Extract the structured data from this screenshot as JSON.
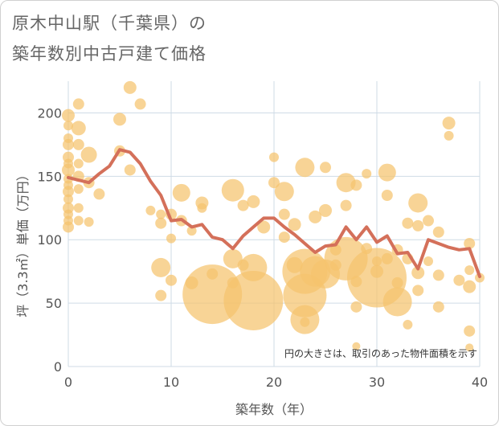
{
  "title_line1": "原木中山駅（千葉県）の",
  "title_line2": "築年数別中古戸建て価格",
  "chart_data": {
    "type": "scatter+line",
    "xlabel": "築年数（年）",
    "ylabel": "坪（3.3㎡）単価（万円）",
    "xlim": [
      0,
      40
    ],
    "ylim": [
      0,
      225
    ],
    "xticks": [
      0,
      10,
      20,
      30,
      40
    ],
    "yticks": [
      0,
      50,
      100,
      150,
      200
    ],
    "grid": true,
    "annotation": "円の大きさは、取引のあった物件面積を示す",
    "colors": {
      "bubble": "#f5c46e",
      "line": "#d4705a",
      "grid": "#cfdbe6"
    },
    "bubbles": [
      {
        "x": 0,
        "y": 198,
        "r": 8
      },
      {
        "x": 0,
        "y": 190,
        "r": 6
      },
      {
        "x": 0,
        "y": 180,
        "r": 6
      },
      {
        "x": 0,
        "y": 175,
        "r": 7
      },
      {
        "x": 0,
        "y": 165,
        "r": 7
      },
      {
        "x": 0,
        "y": 160,
        "r": 6
      },
      {
        "x": 0,
        "y": 155,
        "r": 8
      },
      {
        "x": 0,
        "y": 148,
        "r": 6
      },
      {
        "x": 0,
        "y": 143,
        "r": 6
      },
      {
        "x": 0,
        "y": 138,
        "r": 7
      },
      {
        "x": 0,
        "y": 132,
        "r": 6
      },
      {
        "x": 0,
        "y": 125,
        "r": 7
      },
      {
        "x": 0,
        "y": 120,
        "r": 6
      },
      {
        "x": 0,
        "y": 115,
        "r": 6
      },
      {
        "x": 0,
        "y": 110,
        "r": 7
      },
      {
        "x": 1,
        "y": 207,
        "r": 7
      },
      {
        "x": 1,
        "y": 188,
        "r": 9
      },
      {
        "x": 1,
        "y": 175,
        "r": 7
      },
      {
        "x": 1,
        "y": 160,
        "r": 6
      },
      {
        "x": 1,
        "y": 150,
        "r": 7
      },
      {
        "x": 1,
        "y": 140,
        "r": 6
      },
      {
        "x": 1,
        "y": 125,
        "r": 6
      },
      {
        "x": 1,
        "y": 115,
        "r": 6
      },
      {
        "x": 2,
        "y": 167,
        "r": 10
      },
      {
        "x": 2,
        "y": 145,
        "r": 7
      },
      {
        "x": 2,
        "y": 114,
        "r": 6
      },
      {
        "x": 3,
        "y": 136,
        "r": 7
      },
      {
        "x": 5,
        "y": 195,
        "r": 8
      },
      {
        "x": 5,
        "y": 170,
        "r": 7
      },
      {
        "x": 6,
        "y": 220,
        "r": 8
      },
      {
        "x": 6,
        "y": 155,
        "r": 7
      },
      {
        "x": 7,
        "y": 207,
        "r": 7
      },
      {
        "x": 8,
        "y": 123,
        "r": 6
      },
      {
        "x": 9,
        "y": 120,
        "r": 6
      },
      {
        "x": 9,
        "y": 113,
        "r": 7
      },
      {
        "x": 9,
        "y": 78,
        "r": 12
      },
      {
        "x": 9,
        "y": 56,
        "r": 7
      },
      {
        "x": 10,
        "y": 120,
        "r": 7
      },
      {
        "x": 10,
        "y": 101,
        "r": 6
      },
      {
        "x": 10,
        "y": 68,
        "r": 7
      },
      {
        "x": 11,
        "y": 137,
        "r": 11
      },
      {
        "x": 11,
        "y": 115,
        "r": 7
      },
      {
        "x": 12,
        "y": 107,
        "r": 6
      },
      {
        "x": 12,
        "y": 66,
        "r": 8
      },
      {
        "x": 13,
        "y": 129,
        "r": 8
      },
      {
        "x": 13,
        "y": 125,
        "r": 6
      },
      {
        "x": 14,
        "y": 57,
        "r": 37
      },
      {
        "x": 14,
        "y": 73,
        "r": 7
      },
      {
        "x": 16,
        "y": 139,
        "r": 14
      },
      {
        "x": 16,
        "y": 85,
        "r": 12
      },
      {
        "x": 16,
        "y": 66,
        "r": 7
      },
      {
        "x": 17,
        "y": 127,
        "r": 7
      },
      {
        "x": 17,
        "y": 80,
        "r": 7
      },
      {
        "x": 18,
        "y": 130,
        "r": 8
      },
      {
        "x": 18,
        "y": 78,
        "r": 17
      },
      {
        "x": 18,
        "y": 52,
        "r": 37
      },
      {
        "x": 19,
        "y": 110,
        "r": 8
      },
      {
        "x": 20,
        "y": 165,
        "r": 6
      },
      {
        "x": 20,
        "y": 145,
        "r": 7
      },
      {
        "x": 21,
        "y": 138,
        "r": 12
      },
      {
        "x": 21,
        "y": 120,
        "r": 7
      },
      {
        "x": 21,
        "y": 102,
        "r": 7
      },
      {
        "x": 22,
        "y": 112,
        "r": 8
      },
      {
        "x": 22,
        "y": 80,
        "r": 10
      },
      {
        "x": 23,
        "y": 157,
        "r": 12
      },
      {
        "x": 23,
        "y": 75,
        "r": 28
      },
      {
        "x": 23,
        "y": 56,
        "r": 27
      },
      {
        "x": 23,
        "y": 37,
        "r": 18
      },
      {
        "x": 23,
        "y": 35,
        "r": 6
      },
      {
        "x": 24,
        "y": 118,
        "r": 8
      },
      {
        "x": 24,
        "y": 75,
        "r": 19
      },
      {
        "x": 25,
        "y": 157,
        "r": 7
      },
      {
        "x": 25,
        "y": 123,
        "r": 8
      },
      {
        "x": 25,
        "y": 73,
        "r": 18
      },
      {
        "x": 26,
        "y": 80,
        "r": 7
      },
      {
        "x": 26,
        "y": 92,
        "r": 7
      },
      {
        "x": 27,
        "y": 145,
        "r": 12
      },
      {
        "x": 27,
        "y": 127,
        "r": 7
      },
      {
        "x": 27,
        "y": 85,
        "r": 27
      },
      {
        "x": 28,
        "y": 143,
        "r": 7
      },
      {
        "x": 28,
        "y": 67,
        "r": 7
      },
      {
        "x": 28,
        "y": 47,
        "r": 7
      },
      {
        "x": 28,
        "y": 16,
        "r": 5
      },
      {
        "x": 29,
        "y": 152,
        "r": 6
      },
      {
        "x": 29,
        "y": 93,
        "r": 7
      },
      {
        "x": 30,
        "y": 70,
        "r": 37
      },
      {
        "x": 30,
        "y": 75,
        "r": 8
      },
      {
        "x": 30,
        "y": 83,
        "r": 6
      },
      {
        "x": 31,
        "y": 153,
        "r": 11
      },
      {
        "x": 31,
        "y": 135,
        "r": 7
      },
      {
        "x": 31,
        "y": 85,
        "r": 7
      },
      {
        "x": 32,
        "y": 92,
        "r": 7
      },
      {
        "x": 32,
        "y": 66,
        "r": 7
      },
      {
        "x": 32,
        "y": 51,
        "r": 18
      },
      {
        "x": 33,
        "y": 113,
        "r": 7
      },
      {
        "x": 33,
        "y": 85,
        "r": 7
      },
      {
        "x": 33,
        "y": 33,
        "r": 6
      },
      {
        "x": 34,
        "y": 129,
        "r": 12
      },
      {
        "x": 34,
        "y": 111,
        "r": 7
      },
      {
        "x": 34,
        "y": 74,
        "r": 8
      },
      {
        "x": 34,
        "y": 60,
        "r": 7
      },
      {
        "x": 35,
        "y": 115,
        "r": 7
      },
      {
        "x": 35,
        "y": 83,
        "r": 6
      },
      {
        "x": 36,
        "y": 106,
        "r": 7
      },
      {
        "x": 36,
        "y": 72,
        "r": 7
      },
      {
        "x": 36,
        "y": 47,
        "r": 7
      },
      {
        "x": 37,
        "y": 192,
        "r": 8
      },
      {
        "x": 37,
        "y": 182,
        "r": 6
      },
      {
        "x": 38,
        "y": 68,
        "r": 7
      },
      {
        "x": 39,
        "y": 97,
        "r": 7
      },
      {
        "x": 39,
        "y": 76,
        "r": 6
      },
      {
        "x": 39,
        "y": 63,
        "r": 8
      },
      {
        "x": 39,
        "y": 28,
        "r": 7
      },
      {
        "x": 39,
        "y": 15,
        "r": 5
      },
      {
        "x": 40,
        "y": 70,
        "r": 6
      }
    ],
    "line": [
      {
        "x": 0,
        "y": 149
      },
      {
        "x": 1,
        "y": 147
      },
      {
        "x": 2,
        "y": 145
      },
      {
        "x": 3,
        "y": 152
      },
      {
        "x": 4,
        "y": 158
      },
      {
        "x": 5,
        "y": 171
      },
      {
        "x": 6,
        "y": 169
      },
      {
        "x": 7,
        "y": 160
      },
      {
        "x": 8,
        "y": 146
      },
      {
        "x": 9,
        "y": 135
      },
      {
        "x": 10,
        "y": 115
      },
      {
        "x": 11,
        "y": 116
      },
      {
        "x": 12,
        "y": 110
      },
      {
        "x": 13,
        "y": 112
      },
      {
        "x": 14,
        "y": 102
      },
      {
        "x": 15,
        "y": 100
      },
      {
        "x": 16,
        "y": 93
      },
      {
        "x": 17,
        "y": 103
      },
      {
        "x": 18,
        "y": 110
      },
      {
        "x": 19,
        "y": 117
      },
      {
        "x": 20,
        "y": 117
      },
      {
        "x": 21,
        "y": 110
      },
      {
        "x": 22,
        "y": 104
      },
      {
        "x": 23,
        "y": 97
      },
      {
        "x": 24,
        "y": 90
      },
      {
        "x": 25,
        "y": 95
      },
      {
        "x": 26,
        "y": 96
      },
      {
        "x": 27,
        "y": 110
      },
      {
        "x": 28,
        "y": 100
      },
      {
        "x": 29,
        "y": 110
      },
      {
        "x": 30,
        "y": 98
      },
      {
        "x": 31,
        "y": 103
      },
      {
        "x": 32,
        "y": 89
      },
      {
        "x": 33,
        "y": 90
      },
      {
        "x": 34,
        "y": 77
      },
      {
        "x": 35,
        "y": 100
      },
      {
        "x": 36,
        "y": 97
      },
      {
        "x": 37,
        "y": 94
      },
      {
        "x": 38,
        "y": 92
      },
      {
        "x": 39,
        "y": 93
      },
      {
        "x": 40,
        "y": 71
      }
    ]
  }
}
